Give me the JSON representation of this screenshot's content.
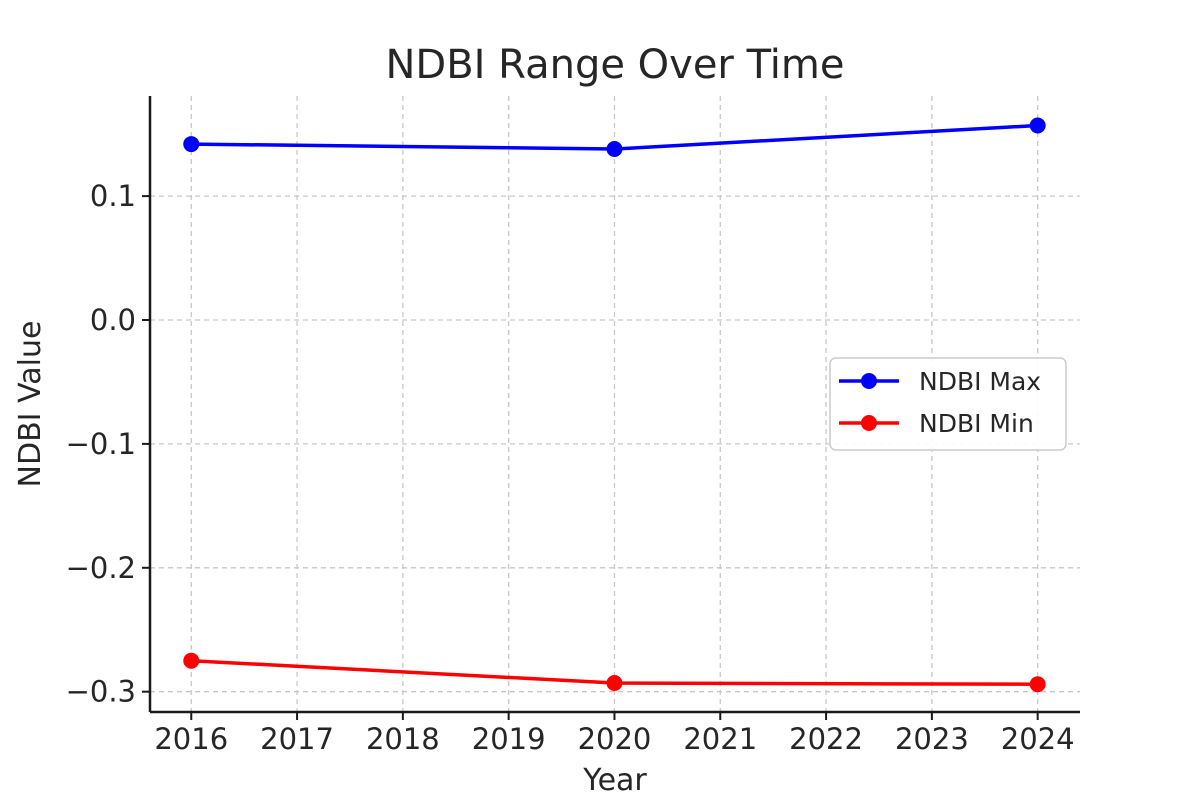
{
  "chart_data": {
    "type": "line",
    "title": "NDBI Range Over Time",
    "xlabel": "Year",
    "ylabel": "NDBI Value",
    "x": [
      2016,
      2020,
      2024
    ],
    "xticks": [
      2016,
      2017,
      2018,
      2019,
      2020,
      2021,
      2022,
      2023,
      2024
    ],
    "xtick_labels": [
      "2016",
      "2017",
      "2018",
      "2019",
      "2020",
      "2021",
      "2022",
      "2023",
      "2024"
    ],
    "yticks": [
      0.1,
      0.0,
      -0.1,
      -0.2,
      -0.3
    ],
    "ytick_labels": [
      "0.1",
      "0.0",
      "−0.1",
      "−0.2",
      "−0.3"
    ],
    "xlim": [
      2015.61,
      2024.4
    ],
    "ylim": [
      -0.3164,
      0.1808
    ],
    "grid": true,
    "legend_position": "center-right",
    "series": [
      {
        "name": "NDBI Max",
        "color": "#0000ff",
        "marker": "circle",
        "values": [
          0.142,
          0.138,
          0.157
        ]
      },
      {
        "name": "NDBI Min",
        "color": "#ff0000",
        "marker": "circle",
        "values": [
          -0.275,
          -0.293,
          -0.294
        ]
      }
    ]
  }
}
